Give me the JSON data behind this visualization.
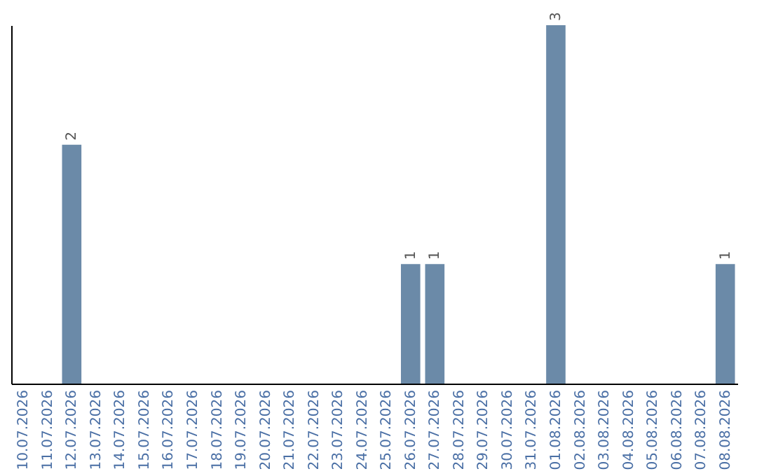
{
  "chart_data": {
    "type": "bar",
    "categories": [
      "10.07.2026",
      "11.07.2026",
      "12.07.2026",
      "13.07.2026",
      "14.07.2026",
      "15.07.2026",
      "16.07.2026",
      "17.07.2026",
      "18.07.2026",
      "19.07.2026",
      "20.07.2026",
      "21.07.2026",
      "22.07.2026",
      "23.07.2026",
      "24.07.2026",
      "25.07.2026",
      "26.07.2026",
      "27.07.2026",
      "28.07.2026",
      "29.07.2026",
      "30.07.2026",
      "31.07.2026",
      "01.08.2026",
      "02.08.2026",
      "03.08.2026",
      "04.08.2026",
      "05.08.2026",
      "06.08.2026",
      "07.08.2026",
      "08.08.2026"
    ],
    "values": [
      0,
      0,
      2,
      0,
      0,
      0,
      0,
      0,
      0,
      0,
      0,
      0,
      0,
      0,
      0,
      0,
      1,
      1,
      0,
      0,
      0,
      0,
      3,
      0,
      0,
      0,
      0,
      0,
      0,
      1
    ],
    "value_labels": [
      null,
      null,
      "2",
      null,
      null,
      null,
      null,
      null,
      null,
      null,
      null,
      null,
      null,
      null,
      null,
      null,
      "1",
      "1",
      null,
      null,
      null,
      null,
      "3",
      null,
      null,
      null,
      null,
      null,
      null,
      "1"
    ],
    "color": "#6b8aa8",
    "grid": false
  }
}
